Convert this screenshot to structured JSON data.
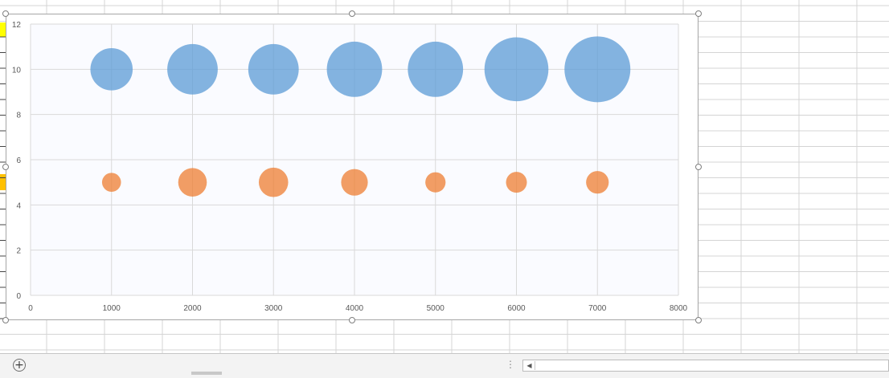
{
  "chart_data": {
    "type": "bubble",
    "xlim": [
      0,
      8000
    ],
    "ylim": [
      0,
      12
    ],
    "x_ticks": [
      "0",
      "1000",
      "2000",
      "3000",
      "4000",
      "5000",
      "6000",
      "7000",
      "8000"
    ],
    "y_ticks": [
      "0",
      "2",
      "4",
      "6",
      "8",
      "10",
      "12"
    ],
    "grid": true,
    "legend": "none",
    "plot_background": "#fafbff",
    "gridline_color": "#d9d9d9",
    "series": [
      {
        "color": "#5b9bd5",
        "points": [
          {
            "x": 1000,
            "y": 10,
            "size": 7
          },
          {
            "x": 2000,
            "y": 10,
            "size": 10
          },
          {
            "x": 3000,
            "y": 10,
            "size": 10
          },
          {
            "x": 4000,
            "y": 10,
            "size": 12
          },
          {
            "x": 5000,
            "y": 10,
            "size": 12
          },
          {
            "x": 6000,
            "y": 10,
            "size": 16
          },
          {
            "x": 7000,
            "y": 10,
            "size": 17
          }
        ]
      },
      {
        "color": "#ed7d31",
        "points": [
          {
            "x": 1000,
            "y": 5,
            "size": 1.4
          },
          {
            "x": 2000,
            "y": 5,
            "size": 3.2
          },
          {
            "x": 3000,
            "y": 5,
            "size": 3.4
          },
          {
            "x": 4000,
            "y": 5,
            "size": 2.8
          },
          {
            "x": 5000,
            "y": 5,
            "size": 1.6
          },
          {
            "x": 6000,
            "y": 5,
            "size": 1.7
          },
          {
            "x": 7000,
            "y": 5,
            "size": 2.0
          }
        ]
      }
    ]
  },
  "ui": {
    "add_sheet_icon": "plus-circle-icon",
    "add_sheet_label": "+",
    "split_handle_label": "⋮",
    "scroll_left_label": "◀",
    "selected_row_color": "#ffff00",
    "selected_row_color_2": "#ffc000",
    "sheet_gridline_color": "#d4d4d4"
  }
}
